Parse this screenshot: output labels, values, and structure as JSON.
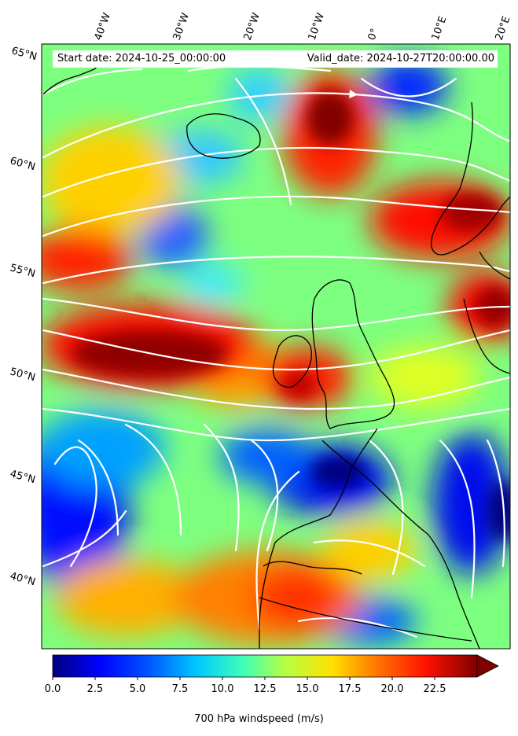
{
  "header": {
    "start_date": "Start date: 2024-10-25_00:00:00",
    "valid_date": "Valid_date: 2024-10-27T20:00:00.00"
  },
  "axes": {
    "longitude_labels": [
      "40°W",
      "30°W",
      "20°W",
      "10°W",
      "0°",
      "10°E",
      "20°E"
    ],
    "latitude_labels": [
      "65°N",
      "60°N",
      "55°N",
      "50°N",
      "45°N",
      "40°N"
    ]
  },
  "colorbar": {
    "label": "700 hPa windspeed (m/s)",
    "tick_labels": [
      "0.0",
      "2.5",
      "5.0",
      "7.5",
      "10.0",
      "12.5",
      "15.0",
      "17.5",
      "20.0",
      "22.5"
    ],
    "min": 0,
    "max": 25,
    "extend": "max"
  },
  "colors": {
    "jet": [
      "#00007f",
      "#0000ff",
      "#007fff",
      "#00ffff",
      "#7fff7f",
      "#ffff00",
      "#ff7f00",
      "#ff0000",
      "#7f0000"
    ],
    "streamline": "#ffffff",
    "coastline": "#000000"
  }
}
